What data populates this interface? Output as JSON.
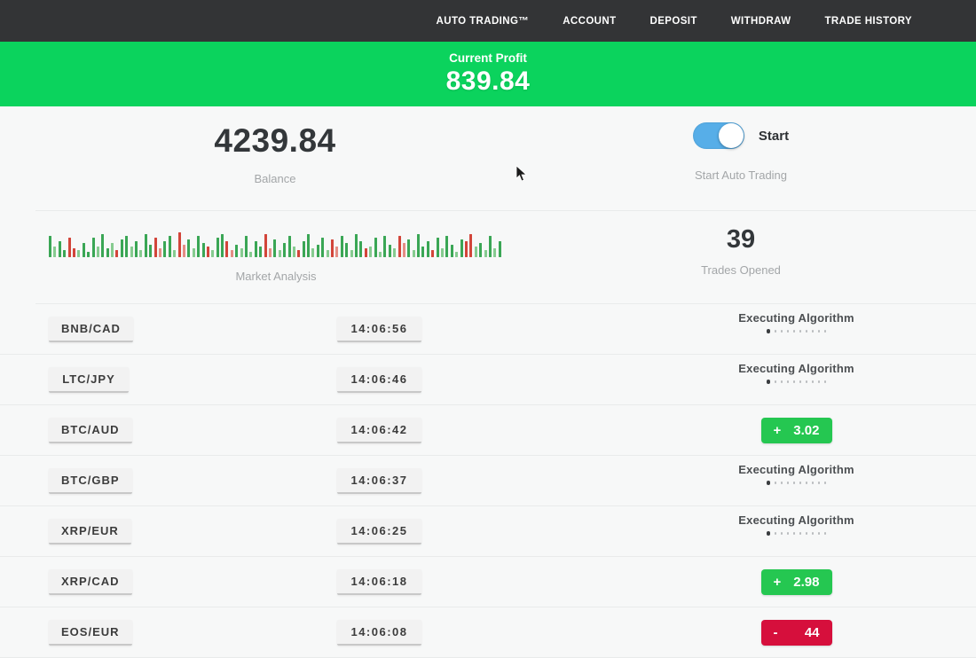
{
  "nav": {
    "items": [
      "AUTO TRADING™",
      "ACCOUNT",
      "DEPOSIT",
      "WITHDRAW",
      "TRADE HISTORY"
    ]
  },
  "profit_banner": {
    "label": "Current Profit",
    "value": "839.84"
  },
  "account": {
    "balance": "4239.84",
    "balance_label": "Balance"
  },
  "auto_trading": {
    "toggle_label": "Start",
    "caption": "Start Auto Trading",
    "toggle_state": "on"
  },
  "market": {
    "label": "Market Analysis",
    "bars": [
      "g24",
      "G12",
      "g18",
      "g8",
      "r22",
      "r10",
      "G8",
      "g16",
      "g6",
      "g22",
      "G12",
      "g26",
      "g10",
      "G16",
      "r8",
      "g20",
      "g24",
      "G12",
      "g18",
      "G8",
      "g26",
      "g14",
      "r22",
      "R10",
      "g18",
      "g24",
      "G8",
      "r28",
      "R14",
      "g20",
      "G10",
      "g24",
      "g16",
      "r12",
      "G8",
      "g22",
      "g26",
      "r18",
      "R8",
      "g14",
      "G10",
      "g24",
      "G6",
      "g18",
      "g12",
      "r26",
      "R10",
      "g20",
      "G8",
      "g16",
      "g24",
      "G12",
      "r8",
      "g18",
      "g26",
      "G10",
      "g14",
      "g22",
      "G8",
      "r20",
      "R12",
      "g24",
      "g16",
      "G8",
      "g26",
      "g18",
      "r10",
      "G12",
      "g22",
      "G6",
      "g24",
      "g14",
      "G10",
      "r24",
      "R16",
      "g20",
      "G8",
      "g26",
      "g12",
      "g18",
      "r8",
      "g22",
      "G10",
      "g24",
      "g14",
      "G6",
      "g20",
      "r18",
      "r26",
      "G12",
      "g16",
      "G8",
      "g24",
      "G10",
      "g18"
    ]
  },
  "trades_opened": {
    "value": "39",
    "label": "Trades Opened"
  },
  "trades": {
    "executing_label": "Executing Algorithm",
    "executing_dots": 10,
    "rows": [
      {
        "pair": "BNB/CAD",
        "time": "14:06:56",
        "status": "executing"
      },
      {
        "pair": "LTC/JPY",
        "time": "14:06:46",
        "status": "executing"
      },
      {
        "pair": "BTC/AUD",
        "time": "14:06:42",
        "status": "profit",
        "sign": "+",
        "amount": "3.02"
      },
      {
        "pair": "BTC/GBP",
        "time": "14:06:37",
        "status": "executing"
      },
      {
        "pair": "XRP/EUR",
        "time": "14:06:25",
        "status": "executing"
      },
      {
        "pair": "XRP/CAD",
        "time": "14:06:18",
        "status": "profit",
        "sign": "+",
        "amount": "2.98"
      },
      {
        "pair": "EOS/EUR",
        "time": "14:06:08",
        "status": "loss",
        "sign": "-",
        "amount": "44"
      }
    ]
  },
  "colors": {
    "nav_bg": "#333436",
    "banner_green": "#0bd35d",
    "toggle_blue": "#57aee8",
    "profit_green": "#25c751",
    "loss_red": "#d60f3c",
    "bar_green": "#3aa655",
    "bar_green_light": "#86cb90",
    "bar_red": "#d2453a",
    "bar_red_light": "#e48d84"
  }
}
